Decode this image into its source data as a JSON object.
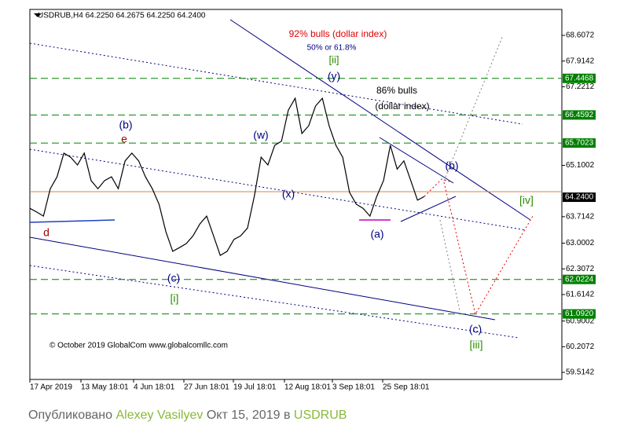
{
  "chart_data": {
    "type": "line",
    "title": "USDRUB,H4  64.2250 64.2675 64.2250 64.2400",
    "x_labels": [
      "17 Apr 2019",
      "13 May 18:01",
      "4 Jun 18:01",
      "27 Jun 18:01",
      "19 Jul 18:01",
      "12 Aug 18:01",
      "3 Sep 18:01",
      "25 Sep 18:01"
    ],
    "series": [
      {
        "name": "USDRUB",
        "color": "#000000",
        "values": [
          63.94,
          63.84,
          63.73,
          64.47,
          64.79,
          65.43,
          65.32,
          65.11,
          65.43,
          64.69,
          64.47,
          64.69,
          64.79,
          64.47,
          65.22,
          65.43,
          65.22,
          64.79,
          64.47,
          64.05,
          63.31,
          62.78,
          62.88,
          62.99,
          63.2,
          63.52,
          63.73,
          63.2,
          62.67,
          62.78,
          63.1,
          63.2,
          63.41,
          64.26,
          65.32,
          65.11,
          65.64,
          65.75,
          66.59,
          66.91,
          65.96,
          66.17,
          66.7,
          66.91,
          66.17,
          65.64,
          65.32,
          64.37,
          64.05,
          63.94,
          63.73,
          64.26,
          64.69,
          65.64,
          65.0,
          65.22,
          64.69,
          64.16,
          64.26
        ]
      }
    ],
    "ylim": [
      59.324,
      69.307
    ],
    "yticks": [
      68.6072,
      67.9142,
      67.2212,
      65.1002,
      63.7142,
      63.0002,
      62.3072,
      61.6142,
      60.9002,
      60.2072,
      59.5142
    ],
    "levels": [
      67.4468,
      66.4592,
      65.7023,
      62.0224,
      {
        "value": 61.092,
        "label": "61.0920"
      }
    ],
    "level_color": "#008000",
    "current_price": {
      "value": 64.24,
      "label": "64.2400"
    },
    "annotations": [
      {
        "text": "92% bulls  (dollar index)",
        "color": "#e00000"
      },
      {
        "text": "50% or 61.8%",
        "color": "#000080"
      },
      {
        "text": "[ii]",
        "color": "#2e8b00"
      },
      {
        "text": "(y)",
        "color": "#000080"
      },
      {
        "text": "86% bulls",
        "color": "#000000"
      },
      {
        "text": "(dollar index)",
        "color": "#000000"
      },
      {
        "text": "(b)",
        "color": "#000080"
      },
      {
        "text": "e",
        "color": "#a00000"
      },
      {
        "text": "(w)",
        "color": "#000080"
      },
      {
        "text": "(x)",
        "color": "#000080"
      },
      {
        "text": "(b)",
        "color": "#000080"
      },
      {
        "text": "[iv]",
        "color": "#2e8b00"
      },
      {
        "text": "(a)",
        "color": "#000080"
      },
      {
        "text": "d",
        "color": "#a00000"
      },
      {
        "text": "(c)",
        "color": "#000080"
      },
      {
        "text": "[i]",
        "color": "#2e8b00"
      },
      {
        "text": "(c)",
        "color": "#000080"
      },
      {
        "text": "[iii]",
        "color": "#2e8b00"
      }
    ],
    "copyright": "© October 2019 GlobalCom www.globalcomllc.com"
  },
  "footer": {
    "prefix": "Опубликовано",
    "author": "Alexey Vasilyev",
    "date": "Окт 15, 2019 в",
    "symbol": "USDRUB"
  }
}
